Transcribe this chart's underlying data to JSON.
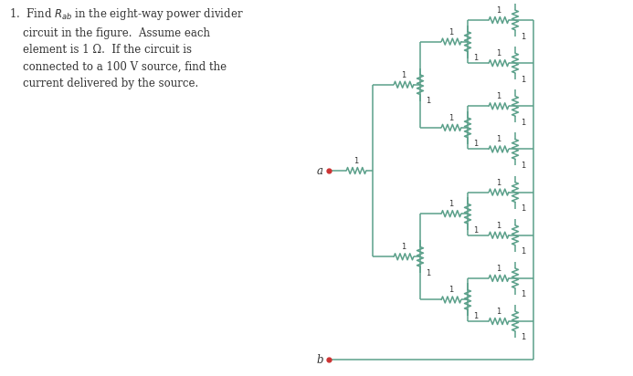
{
  "bg_color": "#ffffff",
  "wire_color": "#5BA08A",
  "resistor_color": "#5BA08A",
  "label_color": "#333333",
  "terminal_color": "#cc3333",
  "text_color": "#333333",
  "resistor_amp": 3.5,
  "resistor_n": 8,
  "lw": 1.1,
  "problem_lines": [
    "1.  Find $R_{ab}$ in the eight-way power divider",
    "    circuit in the figure.  Assume each",
    "    element is 1 Ω.  If the circuit is",
    "    connected to a 100 V source, find the",
    "    current delivered by the source."
  ]
}
